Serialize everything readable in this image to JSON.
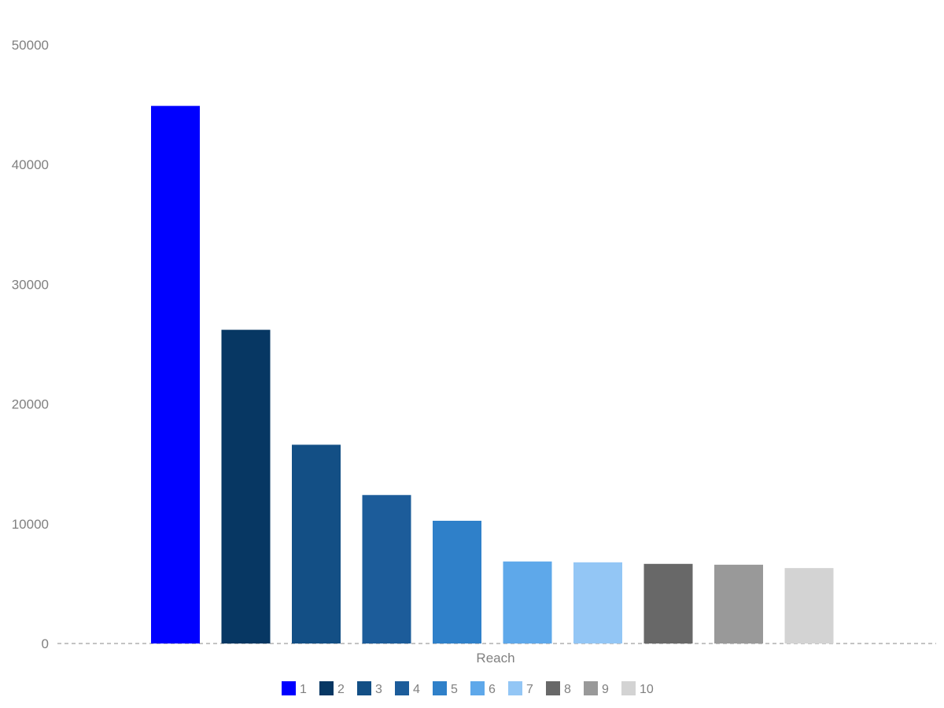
{
  "chart_data": {
    "type": "bar",
    "xlabel": "Reach",
    "ylabel": "",
    "ylim": [
      0,
      50000
    ],
    "yticks": [
      0,
      10000,
      20000,
      30000,
      40000,
      50000
    ],
    "grid": false,
    "legend_position": "bottom",
    "categories": [
      "Reach"
    ],
    "series": [
      {
        "name": "1",
        "values": [
          44900
        ],
        "color": "#0000FF"
      },
      {
        "name": "2",
        "values": [
          26200
        ],
        "color": "#073763"
      },
      {
        "name": "3",
        "values": [
          16600
        ],
        "color": "#134F85"
      },
      {
        "name": "4",
        "values": [
          12400
        ],
        "color": "#1C5C9A"
      },
      {
        "name": "5",
        "values": [
          10250
        ],
        "color": "#2F80C9"
      },
      {
        "name": "6",
        "values": [
          6850
        ],
        "color": "#5EA8EA"
      },
      {
        "name": "7",
        "values": [
          6780
        ],
        "color": "#93C6F5"
      },
      {
        "name": "8",
        "values": [
          6650
        ],
        "color": "#686868"
      },
      {
        "name": "9",
        "values": [
          6580
        ],
        "color": "#999999"
      },
      {
        "name": "10",
        "values": [
          6300
        ],
        "color": "#D3D3D3"
      }
    ]
  }
}
